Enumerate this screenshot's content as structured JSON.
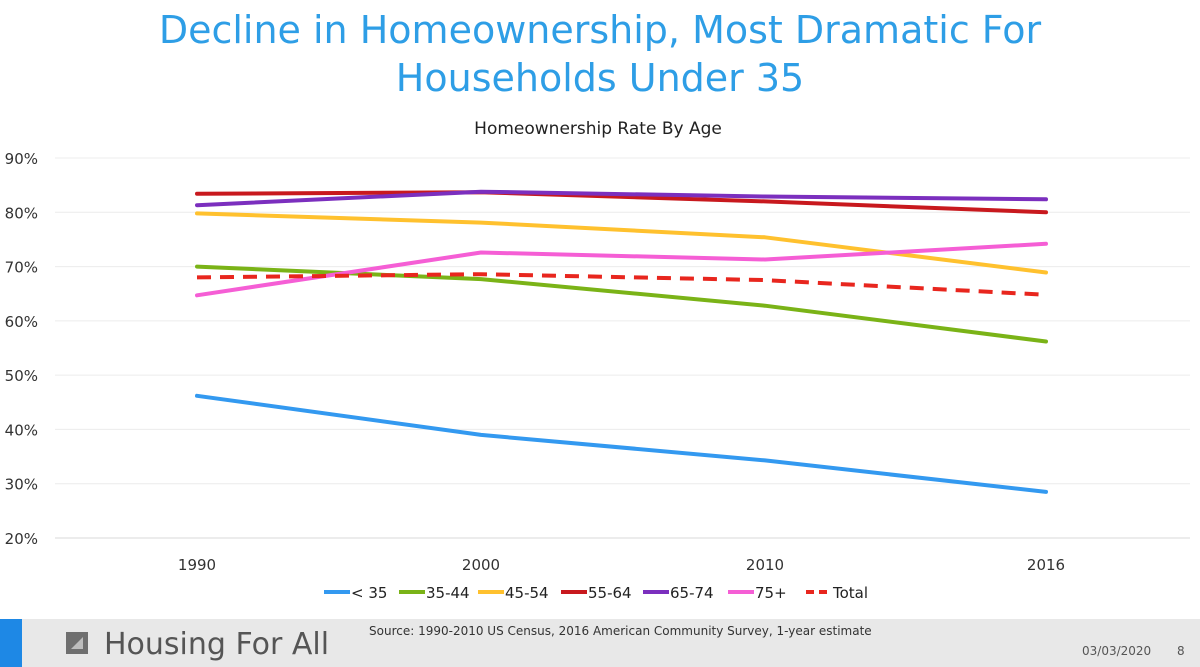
{
  "slide": {
    "title_line1": "Decline in Homeownership, Most Dramatic For",
    "title_line2": "Households Under 35"
  },
  "footer": {
    "brand": "Housing For All",
    "source": "Source: 1990-2010 US Census, 2016 American Community Survey, 1-year estimate",
    "date": "03/03/2020",
    "page": "8",
    "accent_color": "#1e88e5",
    "logo_icon": "housing-logo-icon"
  },
  "chart_data": {
    "type": "line",
    "title": "Homeownership Rate By Age",
    "categories": [
      "1990",
      "2000",
      "2010",
      "2016"
    ],
    "y_ticks": [
      "20%",
      "30%",
      "40%",
      "50%",
      "60%",
      "70%",
      "80%",
      "90%"
    ],
    "ylim": [
      20,
      90
    ],
    "grid": true,
    "legend_position": "bottom",
    "series": [
      {
        "name": "< 35",
        "color": "#3399f0",
        "dashed": false,
        "values": [
          46.2,
          39.0,
          34.3,
          28.5
        ]
      },
      {
        "name": "35-44",
        "color": "#7ab317",
        "dashed": false,
        "values": [
          70.0,
          67.7,
          62.8,
          56.2
        ]
      },
      {
        "name": "45-54",
        "color": "#ffc12e",
        "dashed": false,
        "values": [
          79.8,
          78.1,
          75.4,
          68.9
        ]
      },
      {
        "name": "55-64",
        "color": "#c8191e",
        "dashed": false,
        "values": [
          83.4,
          83.7,
          82.0,
          80.0
        ]
      },
      {
        "name": "65-74",
        "color": "#7b2fbe",
        "dashed": false,
        "values": [
          81.3,
          83.8,
          82.9,
          82.4
        ]
      },
      {
        "name": "75+",
        "color": "#f55ed5",
        "dashed": false,
        "values": [
          64.7,
          72.6,
          71.3,
          74.2
        ]
      },
      {
        "name": "Total",
        "color": "#e8261e",
        "dashed": true,
        "values": [
          68.0,
          68.6,
          67.5,
          64.8
        ]
      }
    ]
  }
}
